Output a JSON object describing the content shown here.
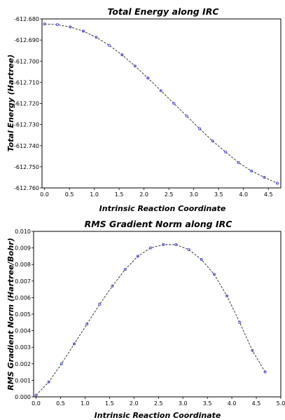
{
  "chart_data": [
    {
      "type": "line",
      "title": "Total Energy along IRC",
      "xlabel": "Intrinsic Reaction Coordinate",
      "ylabel": "Total Energy (Hartree)",
      "xlim": [
        -0.05,
        4.75
      ],
      "ylim": [
        -612.76,
        -612.68
      ],
      "xticks": [
        "0.0",
        "0.5",
        "1.0",
        "1.5",
        "2.0",
        "2.5",
        "3.0",
        "3.5",
        "4.0",
        "4.5"
      ],
      "yticks": [
        "-612.680",
        "-612.690",
        "-612.700",
        "-612.710",
        "-612.720",
        "-612.730",
        "-612.740",
        "-612.750",
        "-612.760"
      ],
      "grid": false,
      "series": [
        {
          "x": [
            0.0,
            0.26,
            0.52,
            0.78,
            1.04,
            1.3,
            1.56,
            1.82,
            2.08,
            2.34,
            2.6,
            2.86,
            3.12,
            3.38,
            3.64,
            3.9,
            4.16,
            4.42,
            4.68
          ],
          "y": [
            -612.6824,
            -612.6827,
            -612.6838,
            -612.6858,
            -612.6887,
            -612.6925,
            -612.697,
            -612.7023,
            -612.708,
            -612.714,
            -612.72,
            -612.726,
            -612.732,
            -612.7378,
            -612.743,
            -612.748,
            -612.752,
            -612.755,
            -612.7578
          ]
        }
      ]
    },
    {
      "type": "line",
      "title": "RMS Gradient Norm along IRC",
      "xlabel": "Intrinsic Reaction Coordinate",
      "ylabel": "RMS Gradient Norm (Hartree/Bohr)",
      "xlim": [
        -0.05,
        5.0
      ],
      "ylim": [
        0.0,
        0.01
      ],
      "xticks": [
        "0.0",
        "0.5",
        "1.0",
        "1.5",
        "2.0",
        "2.5",
        "3.0",
        "3.5",
        "4.0",
        "4.5",
        "5.0"
      ],
      "yticks": [
        "0.000",
        "0.001",
        "0.002",
        "0.003",
        "0.004",
        "0.005",
        "0.006",
        "0.007",
        "0.008",
        "0.009",
        "0.010"
      ],
      "grid": false,
      "series": [
        {
          "x": [
            0.0,
            0.26,
            0.52,
            0.78,
            1.04,
            1.3,
            1.56,
            1.82,
            2.08,
            2.34,
            2.6,
            2.86,
            3.12,
            3.38,
            3.64,
            3.9,
            4.16,
            4.42,
            4.68
          ],
          "y": [
            0.0001,
            0.0009,
            0.002,
            0.0032,
            0.0044,
            0.0056,
            0.0067,
            0.0077,
            0.0085,
            0.009,
            0.0092,
            0.0092,
            0.0089,
            0.0083,
            0.0074,
            0.0061,
            0.0045,
            0.0028,
            0.0015
          ]
        }
      ]
    }
  ]
}
